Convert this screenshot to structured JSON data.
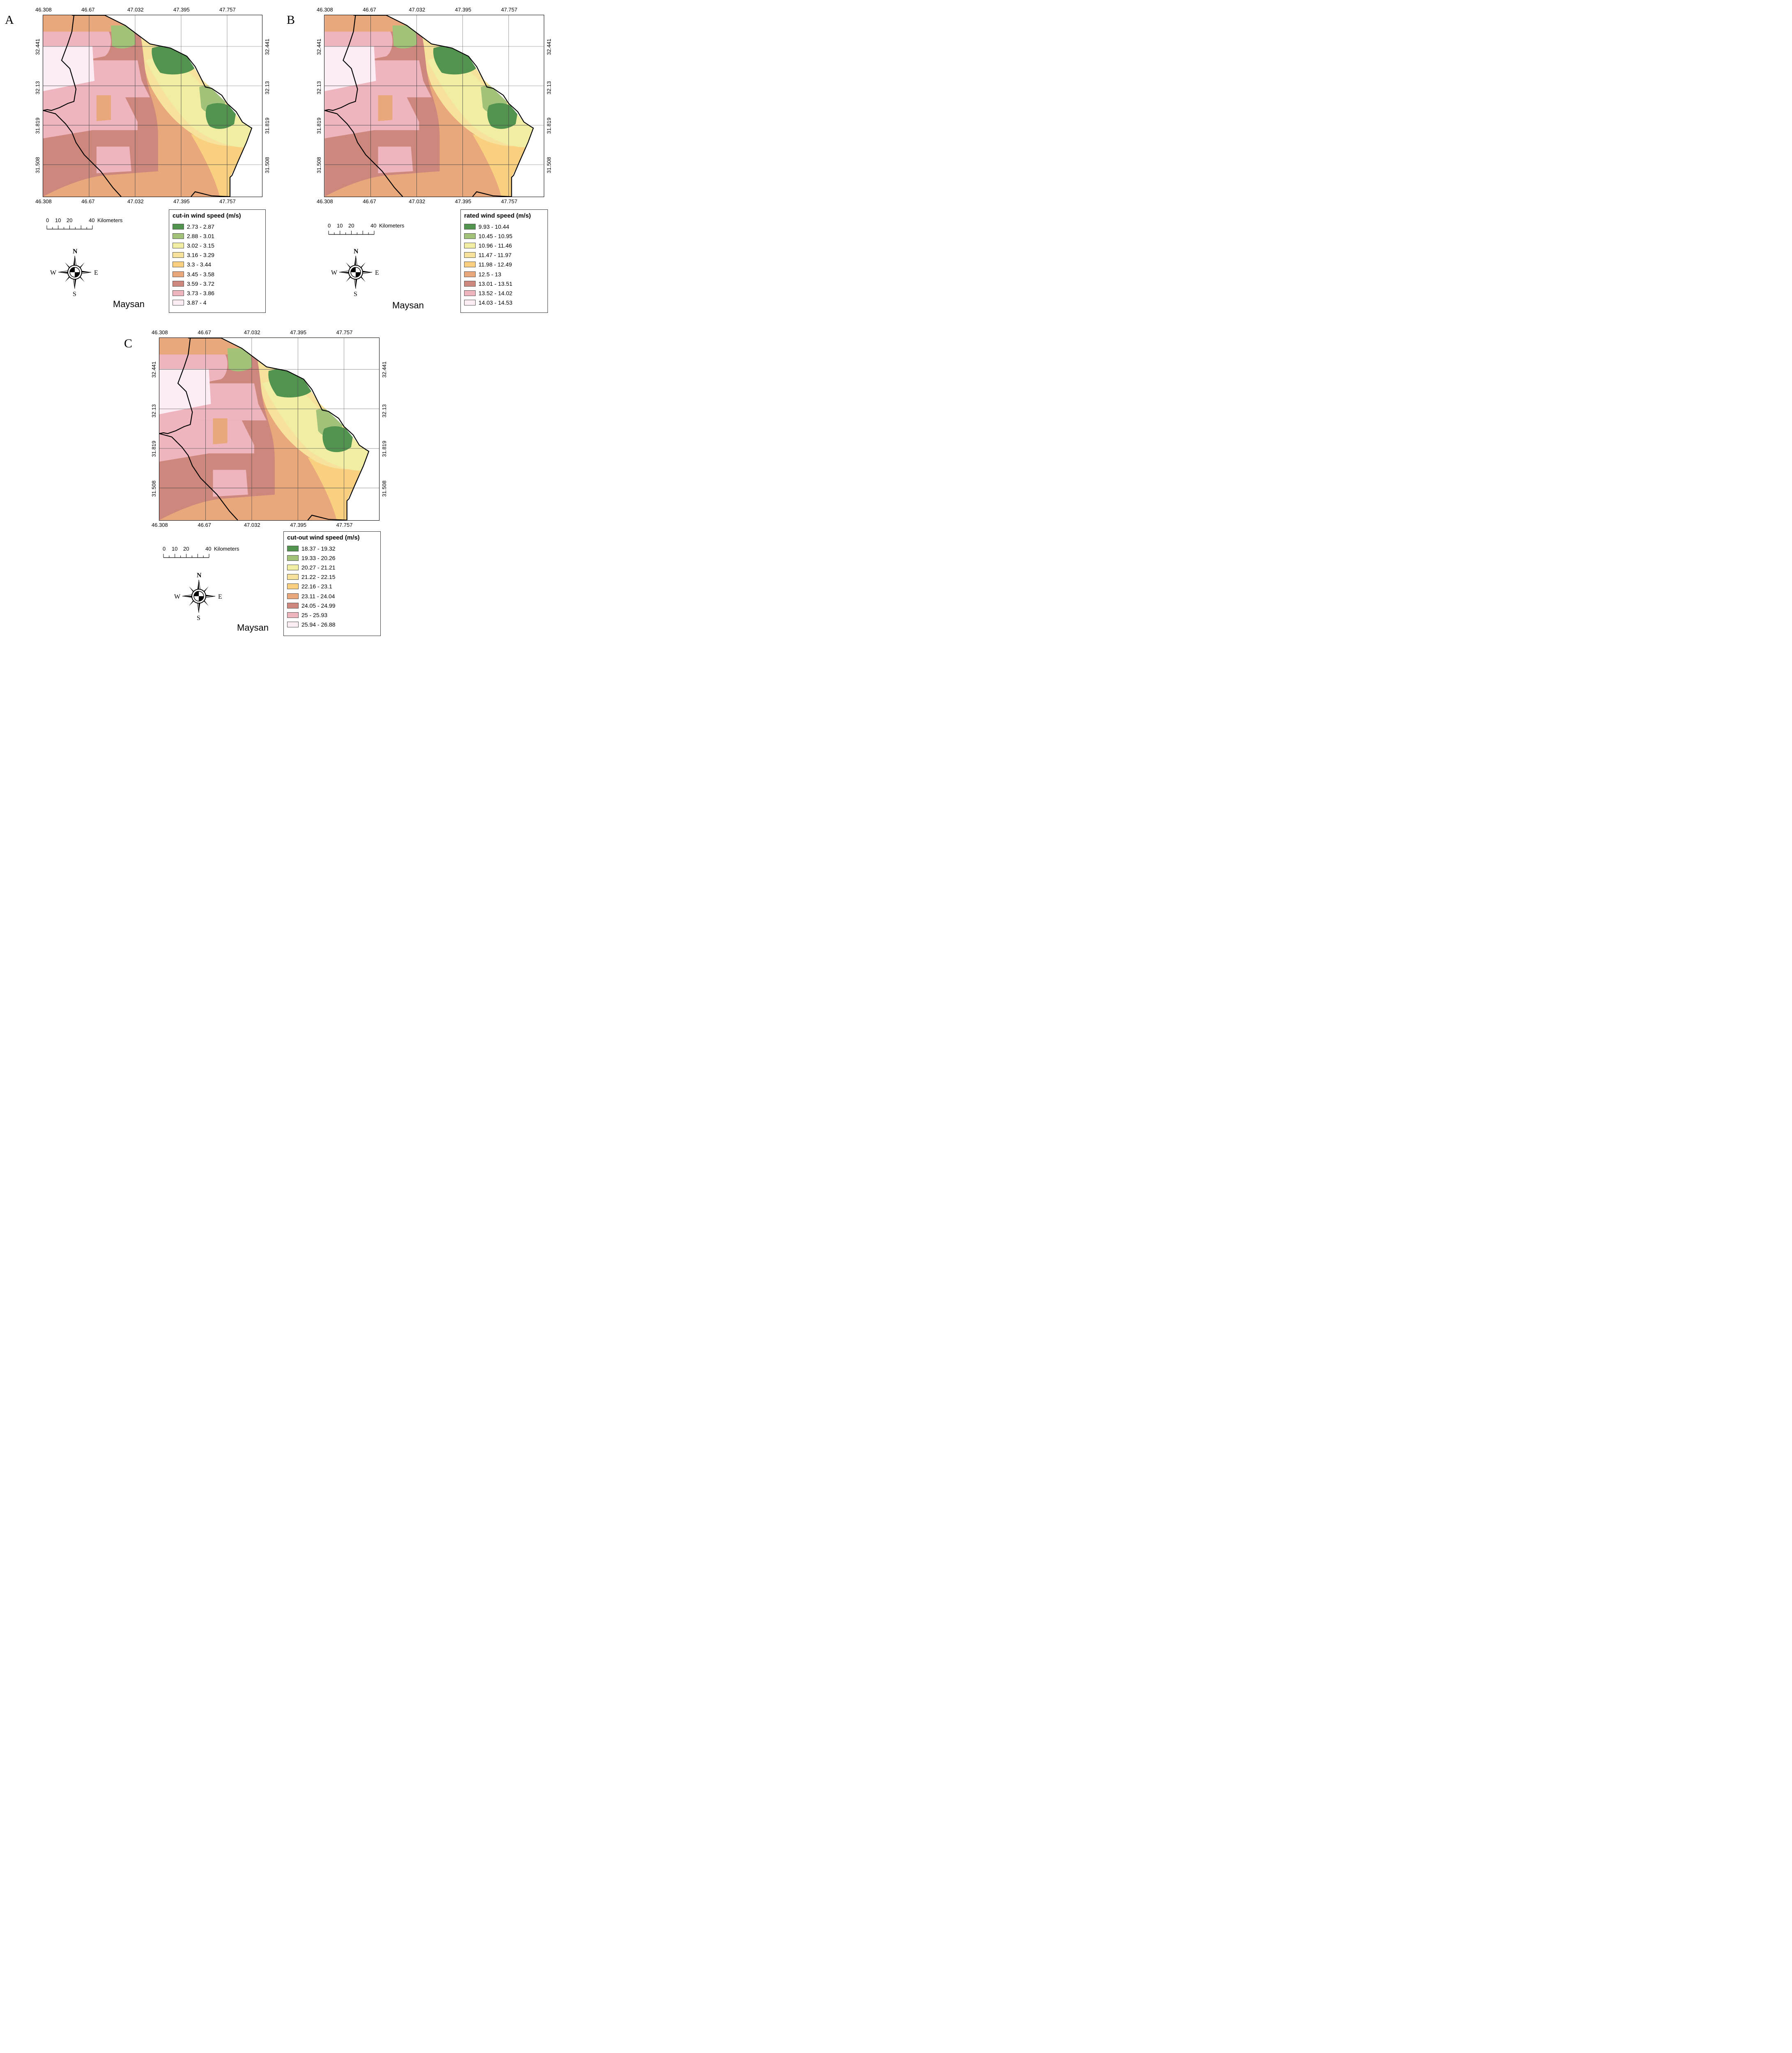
{
  "region_name": "Maysan",
  "longitude_ticks": [
    "46.308",
    "46.67",
    "47.032",
    "47.395",
    "47.757"
  ],
  "latitude_ticks": [
    "32.441",
    "32.13",
    "31.819",
    "31.508"
  ],
  "scale": {
    "labels": [
      "0",
      "10",
      "20",
      "40"
    ],
    "unit": "Kilometers"
  },
  "compass": {
    "north": "N",
    "south": "S",
    "east": "E",
    "west": "W"
  },
  "color_classes": [
    "#52944f",
    "#a3c279",
    "#f1eda3",
    "#f6e29a",
    "#f9cf80",
    "#e8a87c",
    "#ce877c",
    "#eeb5bf",
    "#fcedf5"
  ],
  "panels": [
    {
      "letter": "A",
      "legend_title": "cut-in wind speed (m/s)",
      "classes": [
        "2.73 - 2.87",
        "2.88 - 3.01",
        "3.02 - 3.15",
        "3.16 - 3.29",
        "3.3 - 3.44",
        "3.45 - 3.58",
        "3.59 - 3.72",
        "3.73 - 3.86",
        "3.87 - 4"
      ]
    },
    {
      "letter": "B",
      "legend_title": "rated wind speed (m/s)",
      "classes": [
        "9.93 - 10.44",
        "10.45 - 10.95",
        "10.96 - 11.46",
        "11.47 - 11.97",
        "11.98 - 12.49",
        "12.5 - 13",
        "13.01 - 13.51",
        "13.52 - 14.02",
        "14.03 - 14.53"
      ]
    },
    {
      "letter": "C",
      "legend_title": "cut-out wind speed (m/s)",
      "classes": [
        "18.37 - 19.32",
        "19.33 - 20.26",
        "20.27 - 21.21",
        "21.22 - 22.15",
        "22.16 - 23.1",
        "23.11 - 24.04",
        "24.05 - 24.99",
        "25 - 25.93",
        "25.94 - 26.88"
      ]
    }
  ]
}
